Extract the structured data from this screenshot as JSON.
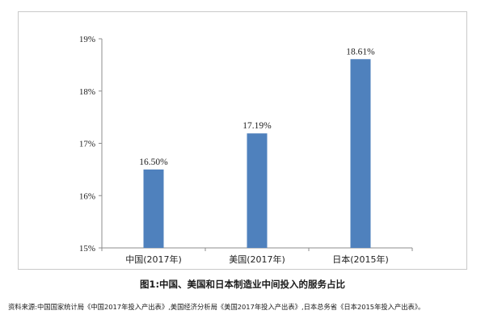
{
  "chart_data": {
    "type": "bar",
    "categories": [
      "中国(2017年)",
      "美国(2017年)",
      "日本(2015年)"
    ],
    "values": [
      16.5,
      17.19,
      18.61
    ],
    "data_labels": [
      "16.50%",
      "17.19%",
      "18.61%"
    ],
    "ylim": [
      15,
      19
    ],
    "yticks": [
      {
        "value": 15,
        "label": "15%"
      },
      {
        "value": 16,
        "label": "16%"
      },
      {
        "value": 17,
        "label": "17%"
      },
      {
        "value": 18,
        "label": "18%"
      },
      {
        "value": 19,
        "label": "19%"
      }
    ],
    "bar_color": "#4f81bd",
    "grid": false
  },
  "caption": "图1:中国、美国和日本制造业中间投入的服务占比",
  "source": "资料来源:中国国家统计局《中国2017年投入产出表》,美国经济分析局《美国2017年投入产出表》,日本总务省《日本2015年投入产出表》。"
}
